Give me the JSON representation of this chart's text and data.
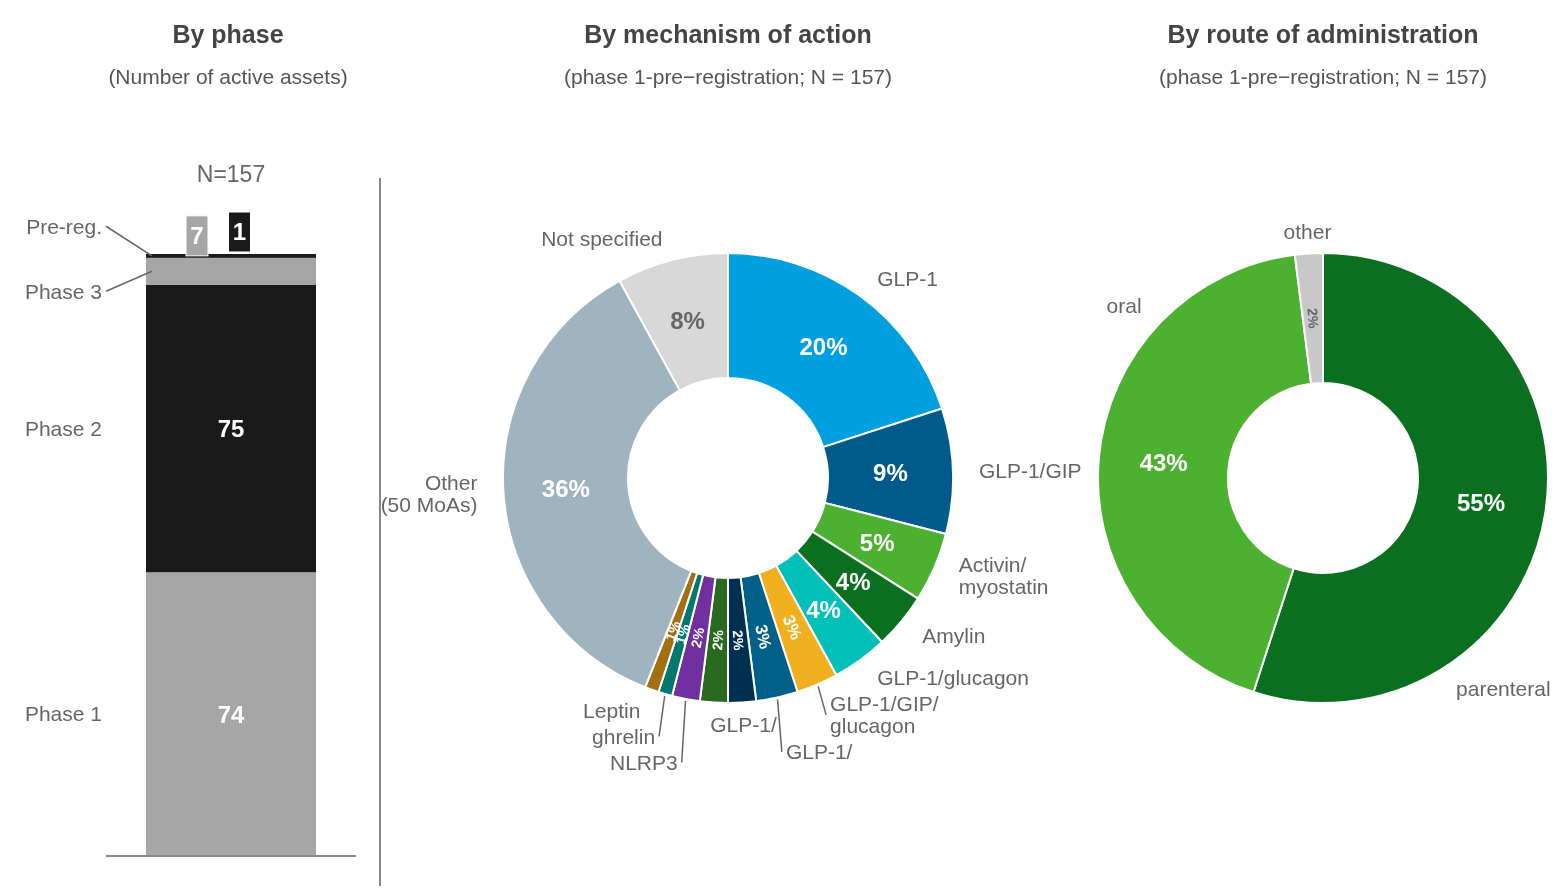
{
  "chart_data": [
    {
      "type": "bar",
      "title": "By phase",
      "subtitle": "(Number of active assets)",
      "categories": [
        null
      ],
      "stacked": true,
      "data_labels": true,
      "totals": [
        "N=157"
      ],
      "series": [
        {
          "name": "Phase 1",
          "color": "#a6a6a6",
          "values": [
            74
          ]
        },
        {
          "name": "Phase 2",
          "color": "#1a1a1a",
          "values": [
            75
          ]
        },
        {
          "name": "Phase 3",
          "color": "#a6a6a6",
          "values": [
            7
          ]
        },
        {
          "name": "Pre-reg.",
          "color": "#1a1a1a",
          "values": [
            1
          ]
        }
      ]
    },
    {
      "type": "donut",
      "title": "By mechanism of action",
      "subtitle": "(phase 1-pre−registration; N = 157)",
      "categories": [
        "GLP-1",
        "GLP-1/GIP",
        "Activin/myostatin",
        "Amylin",
        "GLP-1/glucagon",
        "GLP-1/GIP/glucagon",
        "GLP-1/",
        "GLP-1/",
        null,
        "NLRP3",
        "ghrelin",
        "Leptin",
        "Other (50 MoAs)",
        "Not specified"
      ],
      "values": [
        20,
        9,
        5,
        4,
        4,
        3,
        3,
        2,
        2,
        2,
        1,
        1,
        36,
        8
      ],
      "value_labels": [
        "20%",
        "9%",
        "5%",
        "4%",
        "4%",
        "3%",
        "3%",
        "2%",
        "2%",
        "2%",
        "1%",
        "1%",
        "36%",
        "8%"
      ],
      "colors": [
        "#00a0e0",
        "#005a8c",
        "#4cb030",
        "#0a7020",
        "#00c0b8",
        "#f0b020",
        "#006088",
        "#003050",
        "#2a6a20",
        "#7030a0",
        "#007870",
        "#a07010",
        "#a0b4c0",
        "#d8d8d8"
      ]
    },
    {
      "type": "donut",
      "title": "By route of administration",
      "subtitle": "(phase 1-pre−registration; N = 157)",
      "categories": [
        "parenteral",
        "oral",
        "other"
      ],
      "values": [
        55,
        43,
        2
      ],
      "value_labels": [
        "55%",
        "43%",
        "2%"
      ],
      "colors": [
        "#0a7020",
        "#4cb030",
        "#c8c8c8"
      ]
    }
  ]
}
